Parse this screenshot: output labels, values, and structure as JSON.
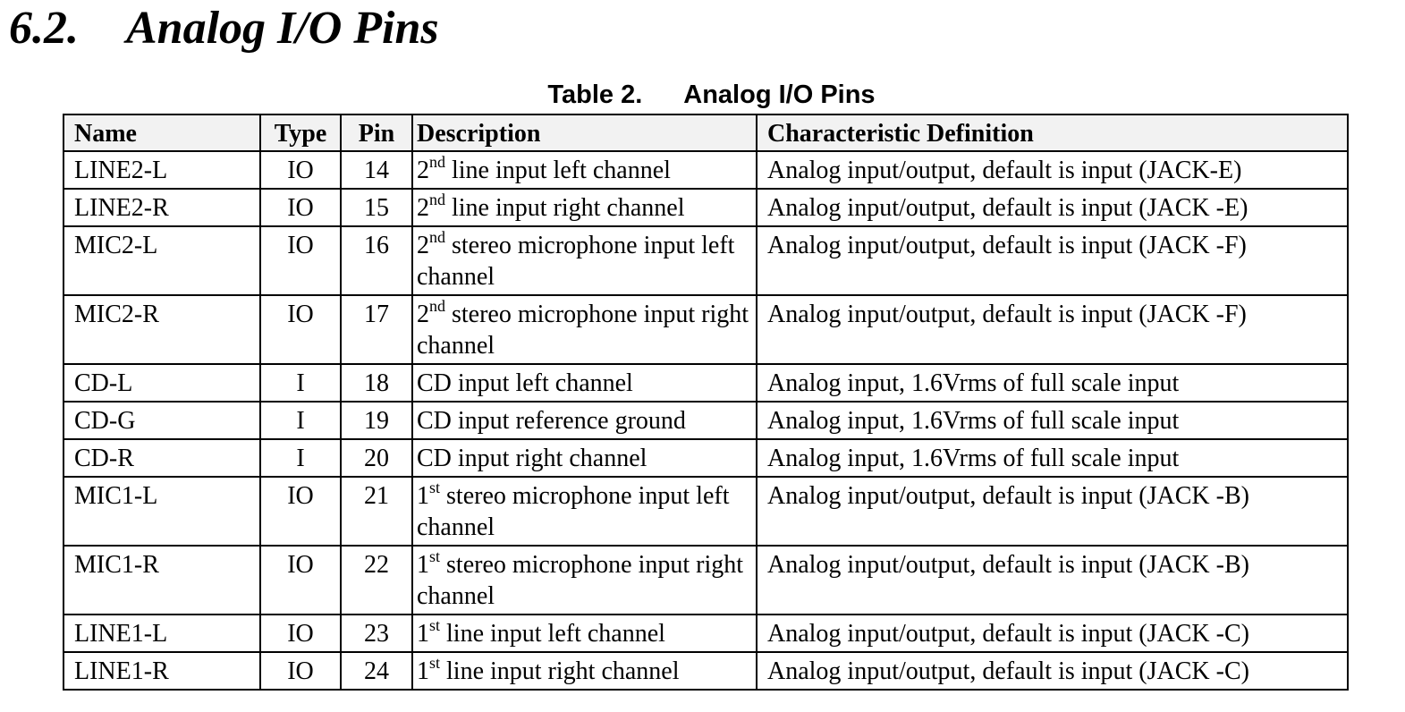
{
  "section": {
    "number": "6.2.",
    "title": "Analog I/O Pins"
  },
  "caption": {
    "label": "Table 2.",
    "title": "Analog I/O Pins"
  },
  "table": {
    "headers": [
      "Name",
      "Type",
      "Pin",
      "Description",
      "Characteristic Definition"
    ],
    "rows": [
      {
        "name": "LINE2-L",
        "type": "IO",
        "pin": "14",
        "ord": "2",
        "sup": "nd",
        "desc": " line input left channel",
        "def": "Analog input/output, default is input (JACK-E)"
      },
      {
        "name": "LINE2-R",
        "type": "IO",
        "pin": "15",
        "ord": "2",
        "sup": "nd",
        "desc": " line input right channel",
        "def": "Analog input/output, default is input (JACK -E)"
      },
      {
        "name": "MIC2-L",
        "type": "IO",
        "pin": "16",
        "ord": "2",
        "sup": "nd",
        "desc": " stereo microphone input left channel",
        "def": "Analog input/output, default is input (JACK -F)"
      },
      {
        "name": "MIC2-R",
        "type": "IO",
        "pin": "17",
        "ord": "2",
        "sup": "nd",
        "desc": " stereo microphone input right channel",
        "def": "Analog input/output, default is input (JACK -F)"
      },
      {
        "name": "CD-L",
        "type": "I",
        "pin": "18",
        "ord": "",
        "sup": "",
        "desc": "CD input left channel",
        "def": "Analog input, 1.6Vrms of full scale input"
      },
      {
        "name": "CD-G",
        "type": "I",
        "pin": "19",
        "ord": "",
        "sup": "",
        "desc": "CD input reference ground",
        "def": "Analog input, 1.6Vrms of full scale input"
      },
      {
        "name": "CD-R",
        "type": "I",
        "pin": "20",
        "ord": "",
        "sup": "",
        "desc": "CD input right channel",
        "def": "Analog input, 1.6Vrms of full scale input"
      },
      {
        "name": "MIC1-L",
        "type": "IO",
        "pin": "21",
        "ord": "1",
        "sup": "st",
        "desc": " stereo microphone input left channel",
        "def": "Analog input/output, default is input (JACK -B)"
      },
      {
        "name": "MIC1-R",
        "type": "IO",
        "pin": "22",
        "ord": "1",
        "sup": "st",
        "desc": " stereo microphone input right channel",
        "def": "Analog input/output, default is input (JACK -B)"
      },
      {
        "name": "LINE1-L",
        "type": "IO",
        "pin": "23",
        "ord": "1",
        "sup": "st",
        "desc": " line input left channel",
        "def": "Analog input/output, default is input (JACK -C)"
      },
      {
        "name": "LINE1-R",
        "type": "IO",
        "pin": "24",
        "ord": "1",
        "sup": "st",
        "desc": " line input right channel",
        "def": "Analog input/output, default is input (JACK -C)"
      }
    ]
  }
}
